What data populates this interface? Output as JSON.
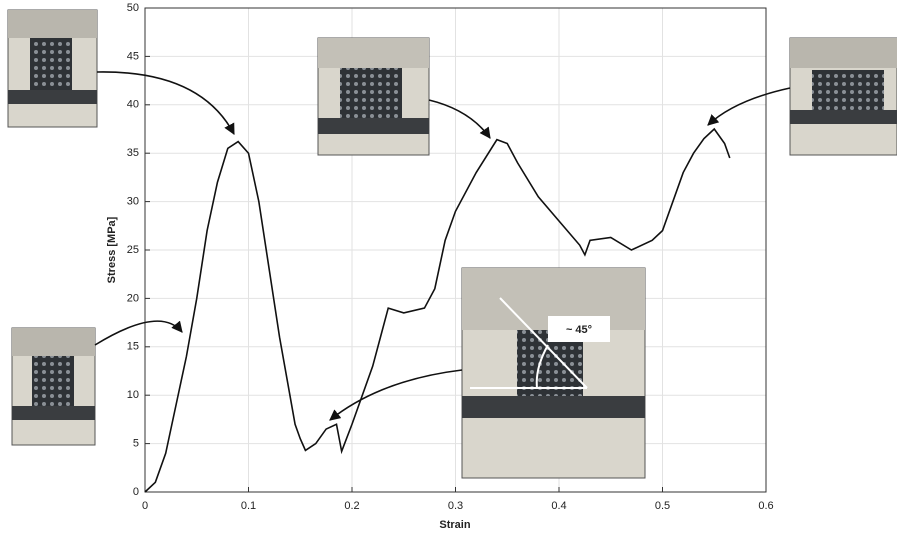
{
  "chart_data": {
    "type": "line",
    "xlabel": "Strain",
    "ylabel": "Stress [MPa]",
    "x": [
      0,
      0.01,
      0.02,
      0.03,
      0.04,
      0.05,
      0.06,
      0.07,
      0.08,
      0.09,
      0.1,
      0.11,
      0.12,
      0.13,
      0.14,
      0.145,
      0.15,
      0.155,
      0.165,
      0.175,
      0.185,
      0.19,
      0.2,
      0.22,
      0.235,
      0.25,
      0.27,
      0.28,
      0.29,
      0.3,
      0.32,
      0.34,
      0.35,
      0.36,
      0.38,
      0.4,
      0.42,
      0.425,
      0.43,
      0.45,
      0.47,
      0.49,
      0.5,
      0.52,
      0.53,
      0.54,
      0.55,
      0.56,
      0.565
    ],
    "values": [
      0,
      1,
      4,
      9,
      14,
      20,
      27,
      32,
      35.5,
      36.2,
      35,
      30,
      23,
      16,
      10,
      7,
      5.5,
      4.3,
      5,
      6.5,
      7,
      4.2,
      7,
      13,
      19,
      18.5,
      19,
      21,
      26,
      29,
      33,
      36.4,
      36,
      34,
      30.5,
      28,
      25.5,
      24.5,
      26,
      26.3,
      25,
      26,
      27,
      33,
      35,
      36.5,
      37.5,
      36,
      34.5
    ],
    "color": "#111111",
    "xlim": [
      0,
      0.6
    ],
    "xticks": [
      0,
      0.1,
      0.2,
      0.3,
      0.4,
      0.5,
      0.6
    ],
    "ylim": [
      0,
      50
    ],
    "yticks": [
      0,
      5,
      10,
      15,
      20,
      25,
      30,
      35,
      40,
      45,
      50
    ],
    "grid": true,
    "annotations": [
      "~ 45°"
    ]
  }
}
